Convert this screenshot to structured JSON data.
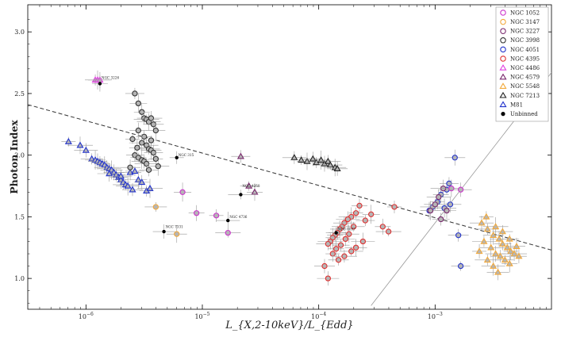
{
  "chart_data": {
    "type": "scatter",
    "xscale": "log",
    "xlim": [
      -6.5,
      -2.0
    ],
    "ylim": [
      0.75,
      3.22
    ],
    "xlabel": "L_{X,2-10keV}/L_{Edd}",
    "ylabel": "Photon Index",
    "yticks": [
      "1.0",
      "1.5",
      "2.0",
      "2.5",
      "3.0"
    ],
    "xticks": [
      {
        "base": "10",
        "exp": "−6",
        "v": -6
      },
      {
        "base": "10",
        "exp": "−5",
        "v": -5
      },
      {
        "base": "10",
        "exp": "−4",
        "v": -4
      },
      {
        "base": "10",
        "exp": "−3",
        "v": -3
      }
    ],
    "legend_position": "top-right",
    "legend": [
      {
        "label": "NGC 1052",
        "color": "#cc33cc",
        "marker": "circle"
      },
      {
        "label": "NGC 3147",
        "color": "#f2a93b",
        "marker": "circle"
      },
      {
        "label": "NGC 3227",
        "color": "#7a2a6e",
        "marker": "circle"
      },
      {
        "label": "NGC 3998",
        "color": "#333333",
        "marker": "circle"
      },
      {
        "label": "NGC 4051",
        "color": "#2233cc",
        "marker": "circle"
      },
      {
        "label": "NGC 4395",
        "color": "#e03030",
        "marker": "circle"
      },
      {
        "label": "NGC 4486",
        "color": "#e040e0",
        "marker": "triangle"
      },
      {
        "label": "NGC 4579",
        "color": "#7a2a6e",
        "marker": "triangle"
      },
      {
        "label": "NGC 5548",
        "color": "#f2a93b",
        "marker": "triangle"
      },
      {
        "label": "NGC 7213",
        "color": "#222222",
        "marker": "triangle"
      },
      {
        "label": "M81",
        "color": "#2233cc",
        "marker": "triangle"
      },
      {
        "label": "Unbinned",
        "color": "#000000",
        "marker": "dot"
      }
    ],
    "dashed_line": {
      "x": [
        -6.5,
        -2.0
      ],
      "y": [
        2.41,
        1.23
      ]
    },
    "dotted_line": {
      "x": [
        -3.55,
        -2.0
      ],
      "y": [
        0.78,
        2.67
      ]
    },
    "annotations": [
      {
        "text": "NGC 3226",
        "x": -5.88,
        "y": 2.62
      },
      {
        "text": "NGC 315",
        "x": -5.22,
        "y": 1.99
      },
      {
        "text": "NGC 4258",
        "x": -4.67,
        "y": 1.74
      },
      {
        "text": "NGC 4736",
        "x": -4.78,
        "y": 1.49
      },
      {
        "text": "NGC 7331",
        "x": -5.33,
        "y": 1.41
      },
      {
        "text": "NGC 1097",
        "x": -3.85,
        "y": 1.39
      }
    ],
    "series": [
      {
        "name": "M81",
        "color": "#2233cc",
        "marker": "triangle",
        "points": [
          {
            "x": -6.15,
            "y": 2.11
          },
          {
            "x": -6.05,
            "y": 2.08
          },
          {
            "x": -6.0,
            "y": 2.04
          },
          {
            "x": -5.95,
            "y": 1.97
          },
          {
            "x": -5.92,
            "y": 1.96
          },
          {
            "x": -5.9,
            "y": 1.95
          },
          {
            "x": -5.88,
            "y": 1.94
          },
          {
            "x": -5.86,
            "y": 1.93
          },
          {
            "x": -5.84,
            "y": 1.92
          },
          {
            "x": -5.82,
            "y": 1.9
          },
          {
            "x": -5.8,
            "y": 1.89
          },
          {
            "x": -5.78,
            "y": 1.88
          },
          {
            "x": -5.76,
            "y": 1.86
          },
          {
            "x": -5.74,
            "y": 1.84
          },
          {
            "x": -5.72,
            "y": 1.82
          },
          {
            "x": -5.7,
            "y": 1.8
          },
          {
            "x": -5.68,
            "y": 1.78
          },
          {
            "x": -5.66,
            "y": 1.76
          },
          {
            "x": -5.64,
            "y": 1.75
          },
          {
            "x": -5.62,
            "y": 1.86
          },
          {
            "x": -5.6,
            "y": 1.72
          },
          {
            "x": -5.58,
            "y": 1.87
          },
          {
            "x": -5.55,
            "y": 1.8
          },
          {
            "x": -5.52,
            "y": 1.78
          },
          {
            "x": -5.48,
            "y": 1.71
          },
          {
            "x": -5.45,
            "y": 1.73
          },
          {
            "x": -5.8,
            "y": 1.85
          },
          {
            "x": -5.7,
            "y": 1.83
          }
        ]
      },
      {
        "name": "NGC 3998",
        "color": "#333333",
        "marker": "circle",
        "points": [
          {
            "x": -5.58,
            "y": 2.5
          },
          {
            "x": -5.55,
            "y": 2.42
          },
          {
            "x": -5.52,
            "y": 2.35
          },
          {
            "x": -5.5,
            "y": 2.3
          },
          {
            "x": -5.48,
            "y": 2.29
          },
          {
            "x": -5.46,
            "y": 2.27
          },
          {
            "x": -5.44,
            "y": 2.3
          },
          {
            "x": -5.42,
            "y": 2.25
          },
          {
            "x": -5.4,
            "y": 2.2
          },
          {
            "x": -5.55,
            "y": 2.2
          },
          {
            "x": -5.5,
            "y": 2.15
          },
          {
            "x": -5.6,
            "y": 2.13
          },
          {
            "x": -5.52,
            "y": 2.1
          },
          {
            "x": -5.48,
            "y": 2.08
          },
          {
            "x": -5.46,
            "y": 2.05
          },
          {
            "x": -5.44,
            "y": 2.04
          },
          {
            "x": -5.42,
            "y": 2.02
          },
          {
            "x": -5.58,
            "y": 2.0
          },
          {
            "x": -5.55,
            "y": 1.98
          },
          {
            "x": -5.52,
            "y": 1.96
          },
          {
            "x": -5.5,
            "y": 1.95
          },
          {
            "x": -5.48,
            "y": 1.93
          },
          {
            "x": -5.38,
            "y": 1.91
          },
          {
            "x": -5.62,
            "y": 1.9
          },
          {
            "x": -5.46,
            "y": 1.88
          },
          {
            "x": -5.44,
            "y": 2.12
          },
          {
            "x": -5.56,
            "y": 2.06
          },
          {
            "x": -5.4,
            "y": 1.97
          }
        ]
      },
      {
        "name": "NGC 7213",
        "color": "#222222",
        "marker": "triangle",
        "points": [
          {
            "x": -4.21,
            "y": 1.98
          },
          {
            "x": -4.15,
            "y": 1.96
          },
          {
            "x": -4.1,
            "y": 1.95
          },
          {
            "x": -4.05,
            "y": 1.97
          },
          {
            "x": -4.02,
            "y": 1.94
          },
          {
            "x": -3.98,
            "y": 1.96
          },
          {
            "x": -3.95,
            "y": 1.93
          },
          {
            "x": -3.92,
            "y": 1.95
          },
          {
            "x": -3.9,
            "y": 1.92
          },
          {
            "x": -3.86,
            "y": 1.9
          },
          {
            "x": -3.84,
            "y": 1.89
          }
        ]
      },
      {
        "name": "NGC 4395",
        "color": "#e03030",
        "marker": "circle",
        "points": [
          {
            "x": -3.65,
            "y": 1.59
          },
          {
            "x": -3.68,
            "y": 1.53
          },
          {
            "x": -3.72,
            "y": 1.5
          },
          {
            "x": -3.75,
            "y": 1.48
          },
          {
            "x": -3.78,
            "y": 1.45
          },
          {
            "x": -3.8,
            "y": 1.42
          },
          {
            "x": -3.82,
            "y": 1.4
          },
          {
            "x": -3.84,
            "y": 1.37
          },
          {
            "x": -3.86,
            "y": 1.35
          },
          {
            "x": -3.88,
            "y": 1.33
          },
          {
            "x": -3.9,
            "y": 1.3
          },
          {
            "x": -3.92,
            "y": 1.28
          },
          {
            "x": -3.7,
            "y": 1.42
          },
          {
            "x": -3.74,
            "y": 1.36
          },
          {
            "x": -3.77,
            "y": 1.32
          },
          {
            "x": -3.81,
            "y": 1.27
          },
          {
            "x": -3.85,
            "y": 1.24
          },
          {
            "x": -3.88,
            "y": 1.2
          },
          {
            "x": -3.78,
            "y": 1.18
          },
          {
            "x": -3.72,
            "y": 1.22
          },
          {
            "x": -3.68,
            "y": 1.25
          },
          {
            "x": -3.95,
            "y": 1.1
          },
          {
            "x": -3.6,
            "y": 1.47
          },
          {
            "x": -3.55,
            "y": 1.52
          },
          {
            "x": -3.45,
            "y": 1.42
          },
          {
            "x": -3.35,
            "y": 1.58
          },
          {
            "x": -3.4,
            "y": 1.38
          },
          {
            "x": -3.62,
            "y": 1.3
          },
          {
            "x": -3.92,
            "y": 1.0
          },
          {
            "x": -3.83,
            "y": 1.15
          }
        ]
      },
      {
        "name": "NGC 4051",
        "color": "#2233cc",
        "marker": "circle",
        "points": [
          {
            "x": -2.83,
            "y": 1.98
          },
          {
            "x": -2.88,
            "y": 1.77
          },
          {
            "x": -2.9,
            "y": 1.72
          },
          {
            "x": -2.95,
            "y": 1.68
          },
          {
            "x": -2.98,
            "y": 1.62
          },
          {
            "x": -3.02,
            "y": 1.58
          },
          {
            "x": -2.92,
            "y": 1.57
          },
          {
            "x": -2.87,
            "y": 1.6
          },
          {
            "x": -2.8,
            "y": 1.35
          },
          {
            "x": -2.78,
            "y": 1.1
          },
          {
            "x": -3.05,
            "y": 1.55
          }
        ]
      },
      {
        "name": "NGC 3227",
        "color": "#7a2a6e",
        "marker": "circle",
        "points": [
          {
            "x": -2.93,
            "y": 1.73
          },
          {
            "x": -2.97,
            "y": 1.66
          },
          {
            "x": -3.0,
            "y": 1.6
          },
          {
            "x": -3.04,
            "y": 1.55
          },
          {
            "x": -2.9,
            "y": 1.55
          },
          {
            "x": -2.95,
            "y": 1.48
          }
        ]
      },
      {
        "name": "NGC 1052",
        "color": "#cc33cc",
        "marker": "circle",
        "points": [
          {
            "x": -5.17,
            "y": 1.7
          },
          {
            "x": -5.05,
            "y": 1.53
          },
          {
            "x": -4.88,
            "y": 1.51
          },
          {
            "x": -4.78,
            "y": 1.37
          },
          {
            "x": -2.86,
            "y": 1.73
          },
          {
            "x": -2.78,
            "y": 1.72
          }
        ]
      },
      {
        "name": "NGC 3147",
        "color": "#f2a93b",
        "marker": "circle",
        "points": [
          {
            "x": -5.4,
            "y": 1.58
          },
          {
            "x": -5.22,
            "y": 1.36
          }
        ]
      },
      {
        "name": "NGC 4486",
        "color": "#e040e0",
        "marker": "triangle",
        "points": [
          {
            "x": -5.92,
            "y": 2.61
          },
          {
            "x": -5.9,
            "y": 2.61
          },
          {
            "x": -5.88,
            "y": 2.61
          }
        ]
      },
      {
        "name": "NGC 4579",
        "color": "#7a2a6e",
        "marker": "triangle",
        "points": [
          {
            "x": -4.67,
            "y": 1.99
          },
          {
            "x": -4.6,
            "y": 1.75
          },
          {
            "x": -4.55,
            "y": 1.7
          }
        ]
      },
      {
        "name": "NGC 5548",
        "color": "#f2a93b",
        "marker": "triangle",
        "points": [
          {
            "x": -2.6,
            "y": 1.45
          },
          {
            "x": -2.55,
            "y": 1.4
          },
          {
            "x": -2.5,
            "y": 1.35
          },
          {
            "x": -2.45,
            "y": 1.32
          },
          {
            "x": -2.42,
            "y": 1.28
          },
          {
            "x": -2.38,
            "y": 1.25
          },
          {
            "x": -2.35,
            "y": 1.22
          },
          {
            "x": -2.32,
            "y": 1.2
          },
          {
            "x": -2.58,
            "y": 1.3
          },
          {
            "x": -2.52,
            "y": 1.25
          },
          {
            "x": -2.48,
            "y": 1.2
          },
          {
            "x": -2.44,
            "y": 1.18
          },
          {
            "x": -2.4,
            "y": 1.15
          },
          {
            "x": -2.36,
            "y": 1.12
          },
          {
            "x": -2.62,
            "y": 1.22
          },
          {
            "x": -2.55,
            "y": 1.15
          },
          {
            "x": -2.5,
            "y": 1.1
          },
          {
            "x": -2.46,
            "y": 1.05
          },
          {
            "x": -2.42,
            "y": 1.38
          },
          {
            "x": -2.36,
            "y": 1.32
          },
          {
            "x": -2.3,
            "y": 1.26
          },
          {
            "x": -2.28,
            "y": 1.18
          },
          {
            "x": -2.56,
            "y": 1.5
          },
          {
            "x": -2.48,
            "y": 1.42
          }
        ]
      },
      {
        "name": "Unbinned",
        "color": "#000000",
        "marker": "dot",
        "points": [
          {
            "x": -5.88,
            "y": 2.58
          },
          {
            "x": -5.22,
            "y": 1.98
          },
          {
            "x": -4.67,
            "y": 1.68
          },
          {
            "x": -4.78,
            "y": 1.47
          },
          {
            "x": -5.33,
            "y": 1.38
          },
          {
            "x": -3.85,
            "y": 1.37
          }
        ]
      }
    ]
  }
}
